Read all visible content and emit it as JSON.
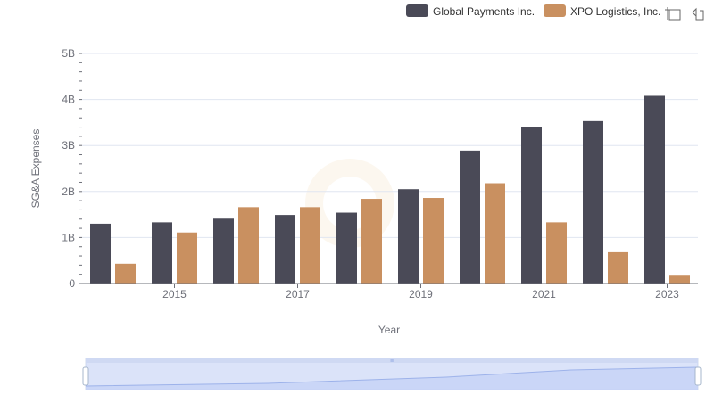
{
  "chart_data": {
    "type": "bar",
    "title": "",
    "xlabel": "Year",
    "ylabel": "SG&A Expenses",
    "x": [
      2014,
      2015,
      2016,
      2017,
      2018,
      2019,
      2020,
      2021,
      2022,
      2023
    ],
    "x_tick_labels": [
      "2015",
      "2017",
      "2019",
      "2021",
      "2023"
    ],
    "y_tick_labels": [
      "0",
      "1B",
      "2B",
      "3B",
      "4B",
      "5B"
    ],
    "ylim": [
      0,
      5000000000
    ],
    "series": [
      {
        "name": "Global Payments Inc.",
        "color": "#4a4a57",
        "values": [
          1300000000,
          1330000000,
          1410000000,
          1490000000,
          1540000000,
          2050000000,
          2890000000,
          3400000000,
          3530000000,
          4080000000
        ]
      },
      {
        "name": "XPO Logistics, Inc.",
        "color": "#c99060",
        "values": [
          430000000,
          1110000000,
          1660000000,
          1660000000,
          1840000000,
          1860000000,
          2180000000,
          1330000000,
          680000000,
          170000000
        ]
      }
    ],
    "legend_position": "top-right",
    "grid": true
  },
  "toolbox": {
    "zoom_icon": "zoom-icon",
    "reset_icon": "reset-icon"
  },
  "data_zoom": {
    "start": 0,
    "end": 100
  }
}
